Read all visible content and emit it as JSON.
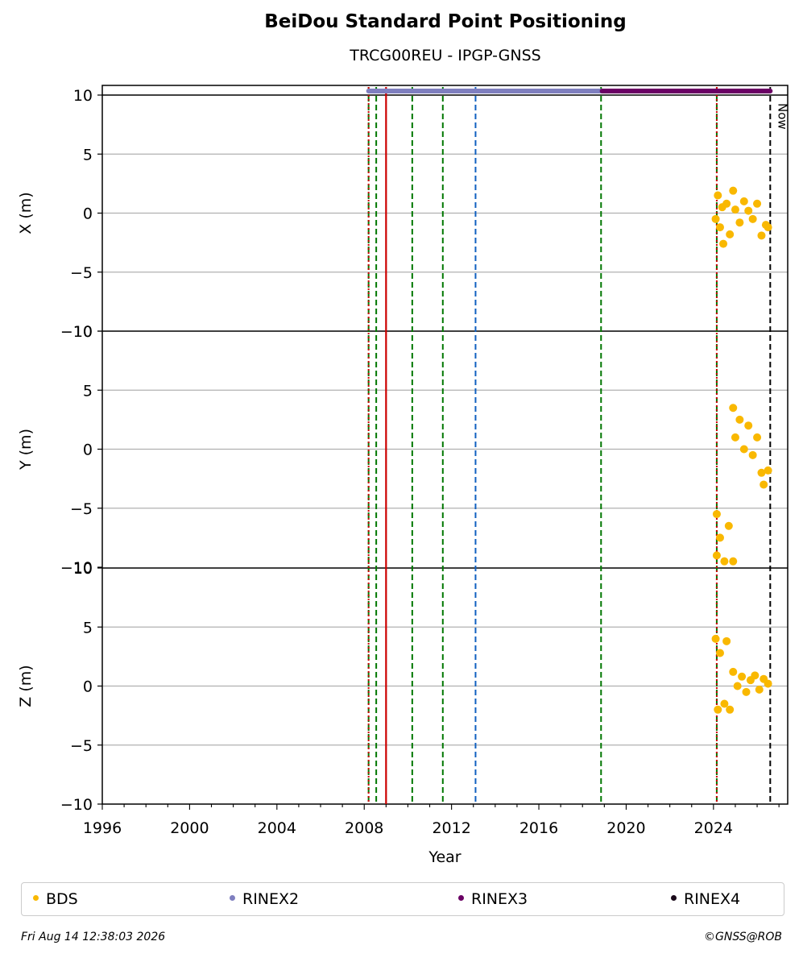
{
  "title": "BeiDou Standard Point Positioning",
  "subtitle": "TRCG00REU - IPGP-GNSS",
  "footer": {
    "date": "Fri Aug 14 12:38:03 2026",
    "credit": "©GNSS@ROB"
  },
  "now_label": "Now",
  "colors": {
    "BDS": "#f9b800",
    "RINEX2": "#7f7fbf",
    "RINEX3": "#6a0064",
    "RINEX4": "#1a0a1a",
    "event_green": "#007700",
    "event_red": "#cc0000",
    "event_blue": "#1060c0",
    "grid": "#b0b0b0"
  },
  "legend": [
    {
      "label": "BDS",
      "color": "#f9b800"
    },
    {
      "label": "RINEX2",
      "color": "#7f7fbf"
    },
    {
      "label": "RINEX3",
      "color": "#6a0064"
    },
    {
      "label": "RINEX4",
      "color": "#1a0a1a"
    }
  ],
  "chart_data": {
    "type": "scatter",
    "xlabel": "Year",
    "xlim": [
      1996,
      2027.4
    ],
    "x_ticks": [
      1996,
      2000,
      2004,
      2008,
      2012,
      2016,
      2020,
      2024
    ],
    "panels": [
      {
        "ylabel": "X (m)",
        "ylim": [
          -10,
          10
        ],
        "y_ticks": [
          -10,
          -5,
          0,
          5,
          10
        ],
        "series": [
          {
            "name": "BDS",
            "x_range": [
              2024.1,
              2026.5
            ],
            "points": [
              [
                2024.1,
                -0.5
              ],
              [
                2024.2,
                1.5
              ],
              [
                2024.3,
                -1.2
              ],
              [
                2024.4,
                0.5
              ],
              [
                2024.45,
                -2.6
              ],
              [
                2024.6,
                0.8
              ],
              [
                2024.75,
                -1.8
              ],
              [
                2024.9,
                1.9
              ],
              [
                2025.0,
                0.3
              ],
              [
                2025.2,
                -0.8
              ],
              [
                2025.4,
                1.0
              ],
              [
                2025.6,
                0.2
              ],
              [
                2025.8,
                -0.5
              ],
              [
                2026.0,
                0.8
              ],
              [
                2026.2,
                -1.9
              ],
              [
                2026.4,
                -1.0
              ],
              [
                2026.5,
                -1.2
              ]
            ]
          }
        ]
      },
      {
        "ylabel": "Y (m)",
        "ylim": [
          -10,
          10
        ],
        "y_ticks": [
          -10,
          -5,
          0,
          5,
          10
        ],
        "series": [
          {
            "name": "BDS",
            "points": [
              [
                2024.15,
                -5.5
              ],
              [
                2024.15,
                -9.0
              ],
              [
                2024.3,
                -7.5
              ],
              [
                2024.5,
                -9.5
              ],
              [
                2024.7,
                -6.5
              ],
              [
                2024.9,
                -9.5
              ],
              [
                2024.9,
                3.5
              ],
              [
                2025.0,
                1.0
              ],
              [
                2025.2,
                2.5
              ],
              [
                2025.4,
                0.0
              ],
              [
                2025.6,
                2.0
              ],
              [
                2025.8,
                -0.5
              ],
              [
                2026.0,
                1.0
              ],
              [
                2026.2,
                -2.0
              ],
              [
                2026.3,
                -3.0
              ],
              [
                2026.5,
                -1.8
              ]
            ]
          }
        ]
      },
      {
        "ylabel": "Z (m)",
        "ylim": [
          -10,
          10
        ],
        "y_ticks": [
          -10,
          -5,
          0,
          5,
          10
        ],
        "series": [
          {
            "name": "BDS",
            "points": [
              [
                2024.1,
                4.0
              ],
              [
                2024.2,
                -2.0
              ],
              [
                2024.3,
                2.8
              ],
              [
                2024.5,
                -1.5
              ],
              [
                2024.6,
                3.8
              ],
              [
                2024.75,
                -2.0
              ],
              [
                2024.9,
                1.2
              ],
              [
                2025.1,
                0.0
              ],
              [
                2025.3,
                0.8
              ],
              [
                2025.5,
                -0.5
              ],
              [
                2025.7,
                0.5
              ],
              [
                2025.9,
                0.9
              ],
              [
                2026.1,
                -0.3
              ],
              [
                2026.3,
                0.6
              ],
              [
                2026.5,
                0.2
              ]
            ]
          }
        ]
      }
    ],
    "data_availability": [
      {
        "name": "RINEX2",
        "from": 2008.2,
        "to": 2018.9
      },
      {
        "name": "RINEX3",
        "from": 2018.9,
        "to": 2026.6
      }
    ],
    "events": [
      {
        "x": 2008.2,
        "color": "green",
        "style": "dashed"
      },
      {
        "x": 2008.2,
        "color": "red",
        "style": "dotted"
      },
      {
        "x": 2008.55,
        "color": "green",
        "style": "dashed"
      },
      {
        "x": 2009.0,
        "color": "red",
        "style": "solid"
      },
      {
        "x": 2010.2,
        "color": "green",
        "style": "dashed"
      },
      {
        "x": 2011.6,
        "color": "green",
        "style": "dashed"
      },
      {
        "x": 2013.1,
        "color": "blue",
        "style": "dashed"
      },
      {
        "x": 2018.85,
        "color": "green",
        "style": "dashed"
      },
      {
        "x": 2024.15,
        "color": "green",
        "style": "dashed"
      },
      {
        "x": 2024.15,
        "color": "red",
        "style": "dotted"
      },
      {
        "x": 2026.6,
        "color": "black",
        "style": "dashed"
      }
    ],
    "grid": true,
    "legend_position": "bottom"
  }
}
